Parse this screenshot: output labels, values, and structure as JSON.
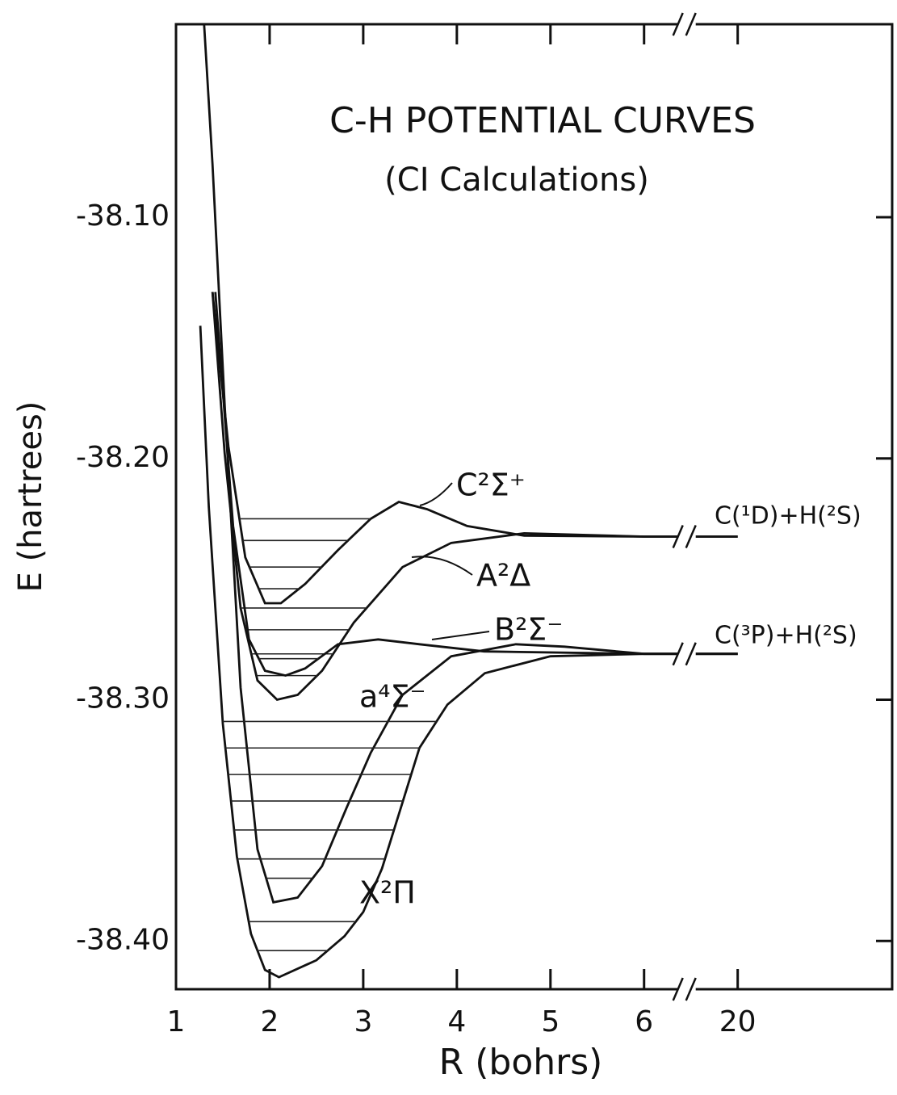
{
  "chart_data": {
    "type": "line",
    "title": "C-H POTENTIAL CURVES",
    "subtitle": "(CI Calculations)",
    "x_label": "R (bohrs)",
    "y_label": "E (hartrees)",
    "xlim": [
      1,
      21.65
    ],
    "ylim": [
      -38.42,
      -38.02
    ],
    "xticks": [
      1,
      2,
      3,
      4,
      5,
      6,
      20
    ],
    "yticks": [
      {
        "value": -38.1,
        "label": "-38.10"
      },
      {
        "value": -38.2,
        "label": "-38.20"
      },
      {
        "value": -38.3,
        "label": "-38.30"
      },
      {
        "value": -38.4,
        "label": "-38.40"
      }
    ],
    "axis_break": {
      "from": 6.5,
      "to": 19.5
    },
    "grid": false,
    "series": [
      {
        "name": "C²Σ⁺",
        "color": "#111111",
        "x": [
          1.39,
          1.56,
          1.74,
          1.95,
          2.12,
          2.38,
          2.73,
          3.08,
          3.38,
          3.68,
          4.11,
          4.72,
          6,
          20
        ],
        "values": [
          -38.131,
          -38.195,
          -38.241,
          -38.26,
          -38.26,
          -38.252,
          -38.238,
          -38.225,
          -38.218,
          -38.221,
          -38.228,
          -38.232,
          -38.2324,
          -38.2324
        ],
        "levels": [
          -38.254,
          -38.245,
          -38.234,
          -38.225
        ]
      },
      {
        "name": "A²Δ",
        "color": "#111111",
        "x": [
          1.39,
          1.52,
          1.69,
          1.87,
          2.08,
          2.3,
          2.56,
          2.9,
          3.42,
          3.94,
          4.72,
          6,
          20
        ],
        "values": [
          -38.131,
          -38.198,
          -38.262,
          -38.292,
          -38.3,
          -38.298,
          -38.288,
          -38.268,
          -38.245,
          -38.235,
          -38.231,
          -38.2324,
          -38.2324
        ],
        "levels": [
          -38.29,
          -38.281,
          -38.271,
          -38.262
        ]
      },
      {
        "name": "B²Σ⁻",
        "color": "#111111",
        "x": [
          1.42,
          1.61,
          1.78,
          1.95,
          2.17,
          2.38,
          2.73,
          3.16,
          3.6,
          4.29,
          6,
          20
        ],
        "values": [
          -38.131,
          -38.228,
          -38.275,
          -38.288,
          -38.29,
          -38.287,
          -38.277,
          -38.275,
          -38.277,
          -38.28,
          -38.281,
          -38.281
        ],
        "levels": [
          -38.283
        ]
      },
      {
        "name": "a⁴Σ⁻",
        "color": "#111111",
        "x": [
          1.3,
          1.39,
          1.52,
          1.69,
          1.87,
          2.04,
          2.3,
          2.56,
          2.82,
          3.08,
          3.42,
          3.94,
          4.63,
          5.15,
          6,
          20
        ],
        "values": [
          -38.02,
          -38.078,
          -38.178,
          -38.295,
          -38.362,
          -38.384,
          -38.382,
          -38.369,
          -38.345,
          -38.322,
          -38.298,
          -38.282,
          -38.277,
          -38.278,
          -38.281,
          -38.281
        ],
        "levels": [
          -38.374
        ]
      },
      {
        "name": "X²Π",
        "color": "#111111",
        "x": [
          1.26,
          1.35,
          1.5,
          1.65,
          1.8,
          1.95,
          2.1,
          2.5,
          2.8,
          3.0,
          3.2,
          3.4,
          3.6,
          3.9,
          4.3,
          5.0,
          6,
          20
        ],
        "values": [
          -38.145,
          -38.22,
          -38.31,
          -38.365,
          -38.397,
          -38.412,
          -38.415,
          -38.408,
          -38.398,
          -38.388,
          -38.37,
          -38.345,
          -38.32,
          -38.302,
          -38.289,
          -38.282,
          -38.281,
          -38.281
        ],
        "levels": [
          -38.404,
          -38.392,
          -38.366,
          -38.354,
          -38.342,
          -38.331,
          -38.32,
          -38.309
        ]
      }
    ],
    "annotations": [
      "C(¹D)+H(²S)",
      "C(³P)+H(²S)"
    ]
  }
}
